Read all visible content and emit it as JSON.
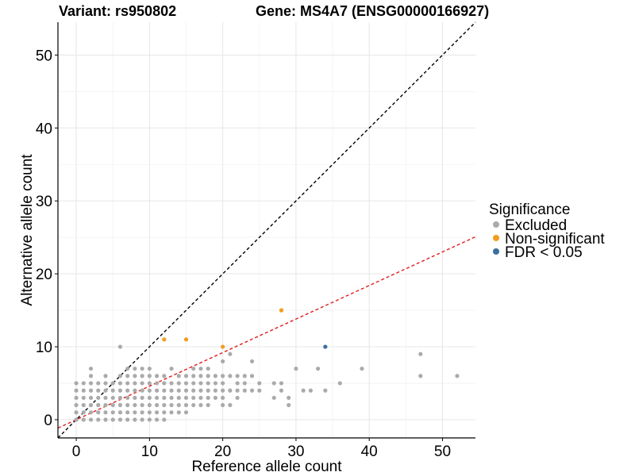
{
  "chart_data": {
    "type": "scatter",
    "title_variant": "Variant: rs950802",
    "title_gene": "Gene: MS4A7 (ENSG00000166927)",
    "xlabel": "Reference allele count",
    "ylabel": "Alternative allele count",
    "xlim": [
      -2.5,
      54.5
    ],
    "ylim": [
      -2.5,
      54.5
    ],
    "xticks": [
      0,
      10,
      20,
      30,
      40,
      50
    ],
    "yticks": [
      0,
      10,
      20,
      30,
      40,
      50
    ],
    "grid": true,
    "reference_lines": [
      {
        "name": "identity",
        "slope": 1.0,
        "intercept": 0,
        "color": "#000000",
        "dash": true
      },
      {
        "name": "fit",
        "slope": 0.46,
        "intercept": 0,
        "color": "#e41a1c",
        "dash": true
      }
    ],
    "legend": {
      "title": "Significance",
      "placement": "right",
      "items": [
        {
          "label": "Excluded",
          "color": "#aaaaaa"
        },
        {
          "label": "Non-significant",
          "color": "#f39c1f"
        },
        {
          "label": "FDR < 0.05",
          "color": "#3a6f9f"
        }
      ]
    },
    "series": [
      {
        "group": "Excluded",
        "color": "#aaaaaa",
        "points": [
          [
            0,
            0
          ],
          [
            0,
            1
          ],
          [
            0,
            2
          ],
          [
            0,
            3
          ],
          [
            0,
            4
          ],
          [
            0,
            5
          ],
          [
            1,
            0
          ],
          [
            1,
            1
          ],
          [
            1,
            2
          ],
          [
            1,
            3
          ],
          [
            1,
            4
          ],
          [
            1,
            5
          ],
          [
            2,
            0
          ],
          [
            2,
            1
          ],
          [
            2,
            2
          ],
          [
            2,
            3
          ],
          [
            2,
            4
          ],
          [
            2,
            5
          ],
          [
            2,
            6
          ],
          [
            2,
            7
          ],
          [
            3,
            0
          ],
          [
            3,
            1
          ],
          [
            3,
            2
          ],
          [
            3,
            3
          ],
          [
            3,
            4
          ],
          [
            3,
            5
          ],
          [
            4,
            0
          ],
          [
            4,
            1
          ],
          [
            4,
            2
          ],
          [
            4,
            3
          ],
          [
            4,
            4
          ],
          [
            4,
            5
          ],
          [
            4,
            6
          ],
          [
            5,
            0
          ],
          [
            5,
            1
          ],
          [
            5,
            2
          ],
          [
            5,
            3
          ],
          [
            5,
            4
          ],
          [
            5,
            5
          ],
          [
            6,
            0
          ],
          [
            6,
            1
          ],
          [
            6,
            2
          ],
          [
            6,
            3
          ],
          [
            6,
            4
          ],
          [
            6,
            5
          ],
          [
            6,
            6
          ],
          [
            6,
            10
          ],
          [
            7,
            0
          ],
          [
            7,
            1
          ],
          [
            7,
            2
          ],
          [
            7,
            3
          ],
          [
            7,
            4
          ],
          [
            7,
            5
          ],
          [
            7,
            6
          ],
          [
            7,
            7
          ],
          [
            8,
            0
          ],
          [
            8,
            1
          ],
          [
            8,
            2
          ],
          [
            8,
            3
          ],
          [
            8,
            4
          ],
          [
            8,
            5
          ],
          [
            8,
            6
          ],
          [
            8,
            7
          ],
          [
            9,
            0
          ],
          [
            9,
            1
          ],
          [
            9,
            2
          ],
          [
            9,
            3
          ],
          [
            9,
            4
          ],
          [
            9,
            5
          ],
          [
            9,
            6
          ],
          [
            9,
            7
          ],
          [
            10,
            0
          ],
          [
            10,
            1
          ],
          [
            10,
            2
          ],
          [
            10,
            3
          ],
          [
            10,
            4
          ],
          [
            10,
            5
          ],
          [
            10,
            6
          ],
          [
            10,
            7
          ],
          [
            11,
            0
          ],
          [
            11,
            1
          ],
          [
            11,
            2
          ],
          [
            11,
            3
          ],
          [
            11,
            4
          ],
          [
            11,
            5
          ],
          [
            11,
            6
          ],
          [
            12,
            0
          ],
          [
            12,
            1
          ],
          [
            12,
            2
          ],
          [
            12,
            3
          ],
          [
            12,
            4
          ],
          [
            12,
            5
          ],
          [
            12,
            6
          ],
          [
            13,
            1
          ],
          [
            13,
            2
          ],
          [
            13,
            3
          ],
          [
            13,
            4
          ],
          [
            13,
            5
          ],
          [
            13,
            7
          ],
          [
            14,
            1
          ],
          [
            14,
            2
          ],
          [
            14,
            3
          ],
          [
            14,
            4
          ],
          [
            14,
            5
          ],
          [
            14,
            6
          ],
          [
            15,
            1
          ],
          [
            15,
            2
          ],
          [
            15,
            3
          ],
          [
            15,
            4
          ],
          [
            15,
            5
          ],
          [
            15,
            6
          ],
          [
            16,
            2
          ],
          [
            16,
            3
          ],
          [
            16,
            4
          ],
          [
            16,
            5
          ],
          [
            16,
            6
          ],
          [
            16,
            7
          ],
          [
            17,
            2
          ],
          [
            17,
            3
          ],
          [
            17,
            4
          ],
          [
            17,
            5
          ],
          [
            17,
            6
          ],
          [
            17,
            7
          ],
          [
            18,
            2
          ],
          [
            18,
            3
          ],
          [
            18,
            4
          ],
          [
            18,
            5
          ],
          [
            18,
            6
          ],
          [
            18,
            7
          ],
          [
            19,
            3
          ],
          [
            19,
            4
          ],
          [
            19,
            5
          ],
          [
            19,
            6
          ],
          [
            20,
            2
          ],
          [
            20,
            3
          ],
          [
            20,
            4
          ],
          [
            20,
            5
          ],
          [
            20,
            6
          ],
          [
            20,
            8
          ],
          [
            21,
            2
          ],
          [
            21,
            4
          ],
          [
            21,
            6
          ],
          [
            21,
            9
          ],
          [
            22,
            3
          ],
          [
            22,
            4
          ],
          [
            22,
            5
          ],
          [
            22,
            6
          ],
          [
            23,
            4
          ],
          [
            23,
            5
          ],
          [
            23,
            6
          ],
          [
            24,
            4
          ],
          [
            24,
            6
          ],
          [
            24,
            8
          ],
          [
            25,
            4
          ],
          [
            25,
            5
          ],
          [
            27,
            3
          ],
          [
            27,
            5
          ],
          [
            28,
            4
          ],
          [
            28,
            5
          ],
          [
            29,
            2
          ],
          [
            29,
            3
          ],
          [
            30,
            7
          ],
          [
            31,
            4
          ],
          [
            32,
            4
          ],
          [
            33,
            7
          ],
          [
            34,
            4
          ],
          [
            36,
            5
          ],
          [
            39,
            7
          ],
          [
            47,
            6
          ],
          [
            47,
            9
          ],
          [
            52,
            6
          ]
        ]
      },
      {
        "group": "Non-significant",
        "color": "#f39c1f",
        "points": [
          [
            12,
            11
          ],
          [
            15,
            11
          ],
          [
            20,
            10
          ],
          [
            28,
            15
          ]
        ]
      },
      {
        "group": "FDR < 0.05",
        "color": "#3a6f9f",
        "points": [
          [
            34,
            10
          ]
        ]
      }
    ]
  }
}
